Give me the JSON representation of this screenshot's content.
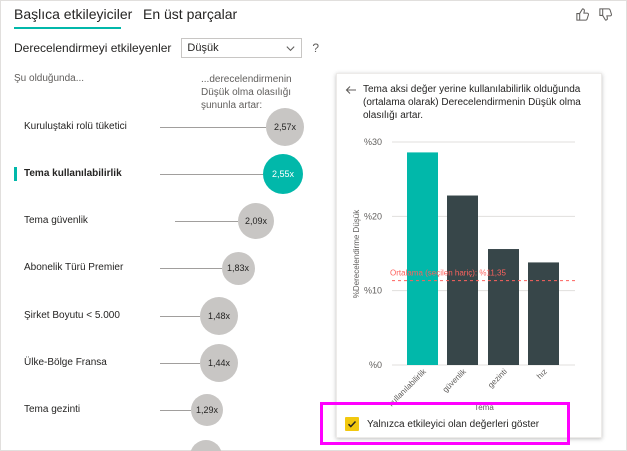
{
  "tabs": [
    {
      "label": "Başlıca etkileyiciler",
      "active": true
    },
    {
      "label": "En üst parçalar",
      "active": false
    }
  ],
  "header_icons": [
    "thumbs-up-icon",
    "thumbs-down-icon"
  ],
  "filter": {
    "label": "Derecelendirmeyi etkileyenler",
    "value": "Düşük",
    "help": "?"
  },
  "columns": {
    "left": "Şu olduğunda...",
    "right": "...derecelendirmenin Düşük olma olasılığı şununla artar:"
  },
  "influencers": [
    {
      "label": "Kuruluştaki rolü tüketici",
      "value": "2,57x",
      "selected": false
    },
    {
      "label": "Tema kullanılabilirlik",
      "value": "2,55x",
      "selected": true
    },
    {
      "label": "Tema güvenlik",
      "value": "2,09x",
      "selected": false
    },
    {
      "label": "Abonelik Türü Premier",
      "value": "1,83x",
      "selected": false
    },
    {
      "label": "Şirket Boyutu < 5.000",
      "value": "1,48x",
      "selected": false
    },
    {
      "label": "Ülke-Bölge Fransa",
      "value": "1,44x",
      "selected": false
    },
    {
      "label": "Tema gezinti",
      "value": "1,29x",
      "selected": false
    }
  ],
  "panel": {
    "title": "Tema aksi değer yerine kullanılabilirlik olduğunda (ortalama olarak) Derecelendirmenin Düşük olma olasılığı artar."
  },
  "chart_data": {
    "type": "bar",
    "categories": [
      "kullanılabilirlik",
      "güvenlik",
      "gezinti",
      "hız"
    ],
    "values": [
      28.6,
      22.8,
      15.6,
      13.8
    ],
    "highlight_index": 0,
    "colors": {
      "highlight": "#01b8aa",
      "default": "#374649",
      "reference": "#fd625e"
    },
    "ylabel": "%Derecelendirme Düşük",
    "xlabel": "Tema",
    "yticks": [
      "%0",
      "%10",
      "%20",
      "%30"
    ],
    "ylim": [
      0,
      30
    ],
    "reference_line": {
      "value": 11.35,
      "label": "Ortalama (seçilen hariç): %11,35"
    }
  },
  "checkbox": {
    "label": "Yalnızca etkileyici olan değerleri göster",
    "checked": true
  }
}
